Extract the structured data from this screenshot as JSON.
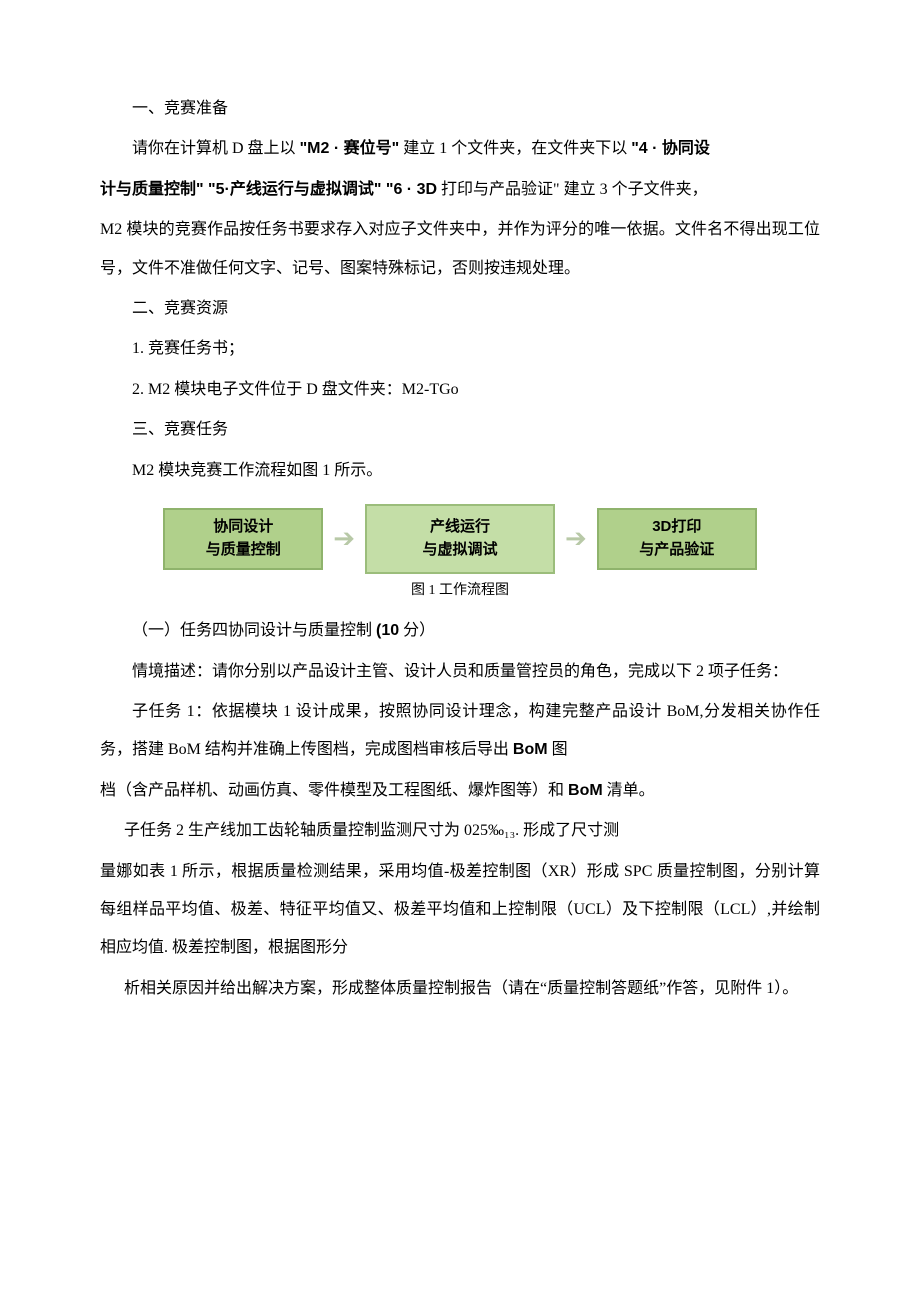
{
  "section1_title": "一、竞赛准备",
  "p1": "请你在计算机 D 盘上以 \"M2 · 赛位号\" 建立 1 个文件夹，在文件夹下以 \"4 · 协同设计与质量控制\" \"5·产线运行与虚拟调试\" \"6 · 3D 打印与产品验证\" 建立 3 个子文件夹，M2 模块的竞赛作品按任务书要求存入对应子文件夹中，并作为评分的唯一依据。文件名不得出现工位号，文件不准做任何文字、记号、图案特殊标记，否则按违规处理。",
  "p1_html_parts": {
    "a": "请你在计算机 D 盘上以",
    "b": "\"M2 · 赛位号\"",
    "c": "建立 1 个文件夹，在文件夹下以",
    "d": "\"4 · 协同设",
    "e": "计与质量控制\" \"5·产线运行与虚拟调试\" \"6 · 3D",
    "f": "打印与产品验证\" 建立 3 个子文件夹，",
    "g": "M2 模块的竞赛作品按任务书要求存入对应子文件夹中，并作为评分的唯一依据。文件名不得出现工位号，文件不准做任何文字、记号、图案特殊标记，否则按违规处理。"
  },
  "section2_title": "二、竞赛资源",
  "res1": "1. 竞赛任务书；",
  "res2": "2. M2 模块电子文件位于 D 盘文件夹：M2-TGo",
  "section3_title": "三、竞赛任务",
  "p_flow_intro": "M2 模块竞赛工作流程如图 1 所示。",
  "flow": {
    "box1": {
      "line1": "协同设计",
      "line2": "与质量控制",
      "width": 160,
      "height": 62,
      "bg": "#b0d08b",
      "border": "#8fb36c"
    },
    "box2": {
      "line1": "产线运行",
      "line2": "与虚拟调试",
      "width": 190,
      "height": 70,
      "bg": "#c4dea7",
      "border": "#9bbd7b"
    },
    "box3": {
      "line1": "3D打印",
      "line2": "与产品验证",
      "width": 160,
      "height": 62,
      "bg": "#b0d08b",
      "border": "#8fb36c"
    },
    "arrow_color": "#b8c9a7",
    "caption": "图 1 工作流程图"
  },
  "task1_heading_a": "（一）任务四协同设计与质量控制",
  "task1_heading_b": "(10",
  "task1_heading_c": "分）",
  "p_context": "情境描述：请你分别以产品设计主管、设计人员和质量管控员的角色，完成以下 2 项子任务：",
  "sub1_a": "子任务 1：依据模块 1 设计成果，按照协同设计理念，构建完整产品设计 BoM,分发相关协作任务，搭建 BoM 结构并准确上传图档，完成图档审核后导出",
  "sub1_b": "BoM",
  "sub1_c": "图",
  "sub1_d": "档（含产品样机、动画仿真、零件模型及工程图纸、爆炸图等）和",
  "sub1_e": "BoM",
  "sub1_f": "清单。",
  "sub2_line1": "子任务 2 生产线加工齿轮轴质量控制监测尺寸为 025‰₁₃. 形成了尺寸测",
  "sub2_body": "量娜如表 1 所示，根据质量检测结果，采用均值-极差控制图（XR）形成 SPC 质量控制图，分别计算每组样品平均值、极差、特征平均值又、极差平均值和上控制限（UCL）及下控制限（LCL）,并绘制相应均值. 极差控制图，根据图形分",
  "sub2_end": "析相关原因并给出解决方案，形成整体质量控制报告（请在“质量控制答题纸”作答，见附件 1）。"
}
